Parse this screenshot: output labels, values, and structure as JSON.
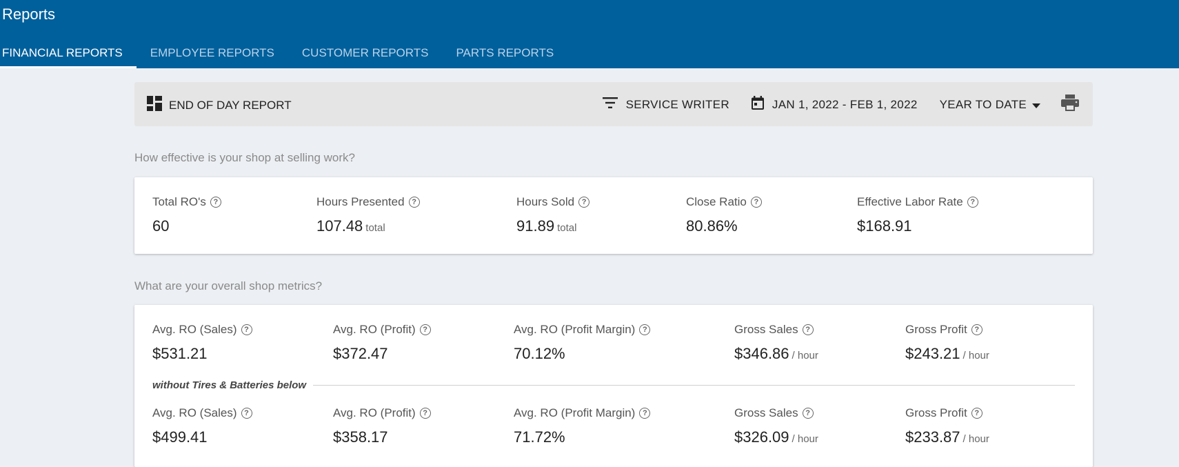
{
  "app": {
    "title": "Reports"
  },
  "tabs": [
    {
      "label": "FINANCIAL REPORTS"
    },
    {
      "label": "EMPLOYEE REPORTS"
    },
    {
      "label": "CUSTOMER REPORTS"
    },
    {
      "label": "PARTS REPORTS"
    }
  ],
  "toolbar": {
    "report_label": "END OF DAY REPORT",
    "filter_label": "SERVICE WRITER",
    "date_range": "JAN 1, 2022 - FEB 1, 2022",
    "period_label": "YEAR TO DATE"
  },
  "selling": {
    "question": "How effective is your shop at selling work?",
    "metrics": [
      {
        "label": "Total RO's",
        "value": "60",
        "unit": ""
      },
      {
        "label": "Hours Presented",
        "value": "107.48",
        "unit": "total"
      },
      {
        "label": "Hours Sold",
        "value": "91.89",
        "unit": "total"
      },
      {
        "label": "Close Ratio",
        "value": "80.86%",
        "unit": ""
      },
      {
        "label": "Effective Labor Rate",
        "value": "$168.91",
        "unit": ""
      }
    ]
  },
  "overall": {
    "question": "What are your overall shop metrics?",
    "divider_label": "without Tires & Batteries below",
    "row1": [
      {
        "label": "Avg. RO (Sales)",
        "value": "$531.21",
        "unit": ""
      },
      {
        "label": "Avg. RO (Profit)",
        "value": "$372.47",
        "unit": ""
      },
      {
        "label": "Avg. RO (Profit Margin)",
        "value": "70.12%",
        "unit": ""
      },
      {
        "label": "Gross Sales",
        "value": "$346.86",
        "unit": "/ hour"
      },
      {
        "label": "Gross Profit",
        "value": "$243.21",
        "unit": "/ hour"
      }
    ],
    "row2": [
      {
        "label": "Avg. RO (Sales)",
        "value": "$499.41",
        "unit": ""
      },
      {
        "label": "Avg. RO (Profit)",
        "value": "$358.17",
        "unit": ""
      },
      {
        "label": "Avg. RO (Profit Margin)",
        "value": "71.72%",
        "unit": ""
      },
      {
        "label": "Gross Sales",
        "value": "$326.09",
        "unit": "/ hour"
      },
      {
        "label": "Gross Profit",
        "value": "$233.87",
        "unit": "/ hour"
      }
    ]
  },
  "icons": {
    "help": "?"
  }
}
